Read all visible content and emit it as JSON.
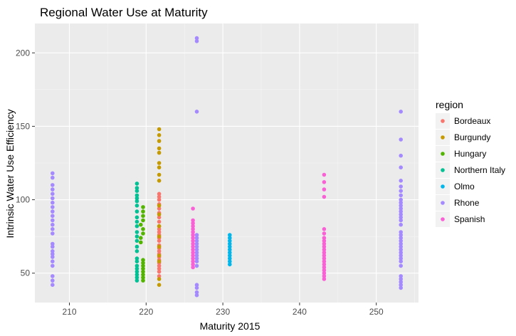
{
  "chart_data": {
    "type": "scatter",
    "title": "Regional Water Use at Maturity",
    "xlabel": "Maturity 2015",
    "ylabel": "Intrinsic Water Use Efficiency",
    "xlim": [
      205.5,
      255.5
    ],
    "ylim": [
      30,
      220
    ],
    "x_ticks": [
      210,
      220,
      230,
      240,
      250
    ],
    "y_ticks": [
      50,
      100,
      150,
      200
    ],
    "x_tick_labels": [
      "210",
      "220",
      "230",
      "240",
      "250"
    ],
    "y_tick_labels": [
      "50",
      "100",
      "150",
      "200"
    ],
    "grid": true,
    "legend": {
      "title": "region",
      "position": "right"
    },
    "series": [
      {
        "name": "Bordeaux",
        "color": "#F8766D",
        "points": [
          [
            221.7,
            48
          ],
          [
            221.7,
            51
          ],
          [
            221.7,
            53
          ],
          [
            221.7,
            55
          ],
          [
            221.7,
            57
          ],
          [
            221.7,
            59
          ],
          [
            221.7,
            61
          ],
          [
            221.7,
            63
          ],
          [
            221.7,
            65
          ],
          [
            221.7,
            67
          ],
          [
            221.7,
            69
          ],
          [
            221.7,
            72
          ],
          [
            221.7,
            74
          ],
          [
            221.7,
            76
          ],
          [
            221.7,
            78
          ],
          [
            221.7,
            80
          ],
          [
            221.7,
            82
          ],
          [
            221.7,
            85
          ],
          [
            221.7,
            88
          ],
          [
            221.7,
            91
          ],
          [
            221.7,
            94
          ],
          [
            221.7,
            97
          ],
          [
            221.7,
            100
          ],
          [
            221.7,
            102
          ],
          [
            221.7,
            104
          ]
        ]
      },
      {
        "name": "Burgundy",
        "color": "#C49A00",
        "points": [
          [
            221.7,
            42
          ],
          [
            221.7,
            46
          ],
          [
            221.7,
            58
          ],
          [
            221.7,
            62
          ],
          [
            221.7,
            68
          ],
          [
            221.7,
            75
          ],
          [
            221.7,
            82
          ],
          [
            221.7,
            90
          ],
          [
            221.7,
            96
          ],
          [
            221.7,
            113
          ],
          [
            221.7,
            117
          ],
          [
            221.7,
            122
          ],
          [
            221.7,
            125
          ],
          [
            221.7,
            132
          ],
          [
            221.7,
            135
          ],
          [
            221.7,
            140
          ],
          [
            221.7,
            144
          ],
          [
            221.7,
            148
          ]
        ]
      },
      {
        "name": "Hungary",
        "color": "#53B400",
        "points": [
          [
            219.6,
            45
          ],
          [
            219.6,
            47
          ],
          [
            219.6,
            49
          ],
          [
            219.6,
            51
          ],
          [
            219.6,
            53
          ],
          [
            219.6,
            55
          ],
          [
            219.6,
            57
          ],
          [
            219.6,
            59
          ],
          [
            219.3,
            71
          ],
          [
            219.3,
            74
          ],
          [
            219.6,
            77
          ],
          [
            219.6,
            80
          ],
          [
            219.3,
            83
          ],
          [
            219.6,
            86
          ],
          [
            219.6,
            89
          ],
          [
            219.6,
            92
          ],
          [
            219.6,
            95
          ]
        ]
      },
      {
        "name": "Northern Italy",
        "color": "#00C094",
        "points": [
          [
            218.8,
            45
          ],
          [
            218.8,
            47
          ],
          [
            218.8,
            49
          ],
          [
            218.8,
            51
          ],
          [
            218.8,
            53
          ],
          [
            218.8,
            55
          ],
          [
            218.8,
            58
          ],
          [
            218.8,
            60
          ],
          [
            218.8,
            65
          ],
          [
            218.8,
            68
          ],
          [
            218.8,
            72
          ],
          [
            218.8,
            75
          ],
          [
            218.8,
            78
          ],
          [
            218.8,
            82
          ],
          [
            218.8,
            85
          ],
          [
            218.8,
            88
          ],
          [
            218.8,
            92
          ],
          [
            218.8,
            96
          ],
          [
            218.8,
            99
          ],
          [
            218.8,
            101
          ],
          [
            218.8,
            103
          ],
          [
            218.8,
            106
          ],
          [
            218.8,
            108
          ],
          [
            218.8,
            111
          ]
        ]
      },
      {
        "name": "Olmo",
        "color": "#00B6EB",
        "points": [
          [
            230.9,
            56
          ],
          [
            230.9,
            58
          ],
          [
            230.9,
            60
          ],
          [
            230.9,
            62
          ],
          [
            230.9,
            64
          ],
          [
            230.9,
            66
          ],
          [
            230.9,
            68
          ],
          [
            230.9,
            70
          ],
          [
            230.9,
            72
          ],
          [
            230.9,
            74
          ],
          [
            230.9,
            76
          ]
        ]
      },
      {
        "name": "Rhone",
        "color": "#A58AFF",
        "points": [
          [
            207.8,
            42
          ],
          [
            207.8,
            45
          ],
          [
            207.8,
            48
          ],
          [
            207.8,
            55
          ],
          [
            207.8,
            58
          ],
          [
            207.8,
            61
          ],
          [
            207.8,
            63
          ],
          [
            207.8,
            65
          ],
          [
            207.8,
            68
          ],
          [
            207.8,
            70
          ],
          [
            207.8,
            77
          ],
          [
            207.8,
            80
          ],
          [
            207.8,
            83
          ],
          [
            207.8,
            86
          ],
          [
            207.8,
            89
          ],
          [
            207.8,
            92
          ],
          [
            207.8,
            95
          ],
          [
            207.8,
            98
          ],
          [
            207.8,
            101
          ],
          [
            207.8,
            104
          ],
          [
            207.8,
            107
          ],
          [
            207.8,
            110
          ],
          [
            207.8,
            115
          ],
          [
            207.8,
            118
          ],
          [
            226.6,
            35
          ],
          [
            226.6,
            37
          ],
          [
            226.6,
            40
          ],
          [
            226.6,
            42
          ],
          [
            226.6,
            55
          ],
          [
            226.6,
            58
          ],
          [
            226.6,
            60
          ],
          [
            226.6,
            62
          ],
          [
            226.6,
            64
          ],
          [
            226.6,
            66
          ],
          [
            226.6,
            68
          ],
          [
            226.6,
            70
          ],
          [
            226.6,
            72
          ],
          [
            226.6,
            74
          ],
          [
            226.6,
            76
          ],
          [
            226.6,
            160
          ],
          [
            226.6,
            208
          ],
          [
            226.6,
            210
          ],
          [
            253.2,
            40
          ],
          [
            253.2,
            42
          ],
          [
            253.2,
            44
          ],
          [
            253.2,
            46
          ],
          [
            253.2,
            48
          ],
          [
            253.2,
            55
          ],
          [
            253.2,
            58
          ],
          [
            253.2,
            60
          ],
          [
            253.2,
            62
          ],
          [
            253.2,
            64
          ],
          [
            253.2,
            66
          ],
          [
            253.2,
            68
          ],
          [
            253.2,
            70
          ],
          [
            253.2,
            72
          ],
          [
            253.2,
            74
          ],
          [
            253.2,
            76
          ],
          [
            253.2,
            78
          ],
          [
            253.2,
            83
          ],
          [
            253.2,
            86
          ],
          [
            253.2,
            88
          ],
          [
            253.2,
            90
          ],
          [
            253.2,
            92
          ],
          [
            253.2,
            94
          ],
          [
            253.2,
            96
          ],
          [
            253.2,
            98
          ],
          [
            253.2,
            100
          ],
          [
            253.2,
            103
          ],
          [
            253.2,
            106
          ],
          [
            253.2,
            109
          ],
          [
            253.2,
            113
          ],
          [
            253.2,
            122
          ],
          [
            253.2,
            130
          ],
          [
            253.2,
            141
          ],
          [
            253.2,
            160
          ]
        ]
      },
      {
        "name": "Spanish",
        "color": "#FB61D7",
        "points": [
          [
            226.1,
            54
          ],
          [
            226.1,
            56
          ],
          [
            226.1,
            58
          ],
          [
            226.1,
            60
          ],
          [
            226.1,
            62
          ],
          [
            226.1,
            64
          ],
          [
            226.1,
            66
          ],
          [
            226.1,
            68
          ],
          [
            226.1,
            70
          ],
          [
            226.1,
            72
          ],
          [
            226.1,
            74
          ],
          [
            226.1,
            76
          ],
          [
            226.1,
            78
          ],
          [
            226.1,
            80
          ],
          [
            226.1,
            82
          ],
          [
            226.1,
            84
          ],
          [
            226.1,
            86
          ],
          [
            226.1,
            94
          ],
          [
            243.2,
            46
          ],
          [
            243.2,
            48
          ],
          [
            243.2,
            50
          ],
          [
            243.2,
            52
          ],
          [
            243.2,
            54
          ],
          [
            243.2,
            56
          ],
          [
            243.2,
            58
          ],
          [
            243.2,
            60
          ],
          [
            243.2,
            62
          ],
          [
            243.2,
            64
          ],
          [
            243.2,
            66
          ],
          [
            243.2,
            68
          ],
          [
            243.2,
            70
          ],
          [
            243.2,
            72
          ],
          [
            243.2,
            74
          ],
          [
            243.2,
            77
          ],
          [
            243.2,
            80
          ],
          [
            243.2,
            102
          ],
          [
            243.2,
            107
          ],
          [
            243.2,
            112
          ],
          [
            243.2,
            117
          ]
        ]
      }
    ]
  }
}
